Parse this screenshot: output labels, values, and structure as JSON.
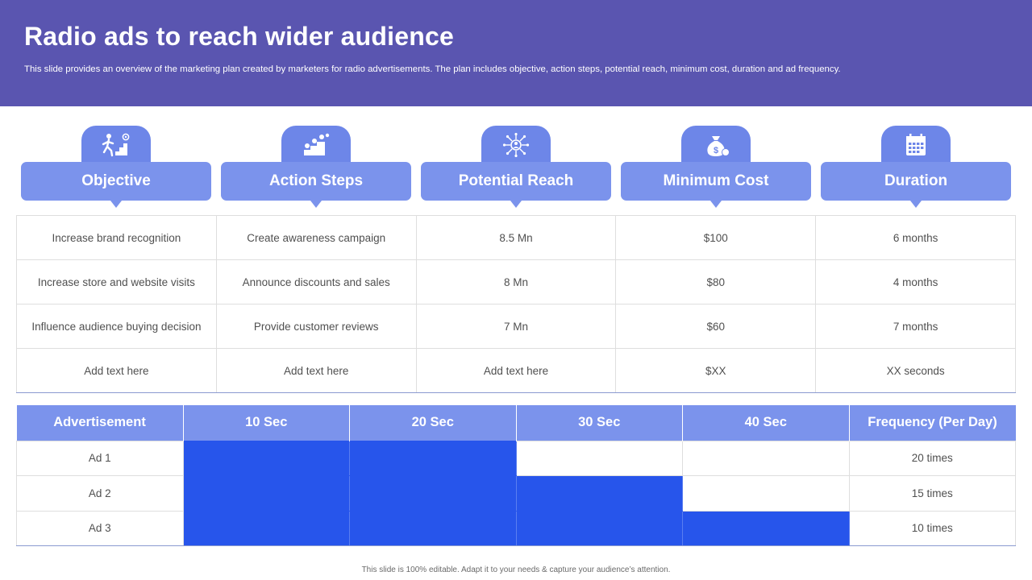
{
  "title": "Radio ads to reach wider audience",
  "subtitle": "This slide provides an overview of the marketing plan created by marketers for radio advertisements. The plan includes objective, action steps, potential reach, minimum cost, duration and ad frequency.",
  "columns": [
    {
      "label": "Objective",
      "icon": "stairs-goal-icon"
    },
    {
      "label": "Action Steps",
      "icon": "growth-steps-icon"
    },
    {
      "label": "Potential Reach",
      "icon": "network-reach-icon"
    },
    {
      "label": "Minimum Cost",
      "icon": "money-bag-icon"
    },
    {
      "label": "Duration",
      "icon": "calendar-icon"
    }
  ],
  "plan_rows": [
    [
      "Increase brand recognition",
      "Create awareness campaign",
      "8.5 Mn",
      "$100",
      "6 months"
    ],
    [
      "Increase store and website visits",
      "Announce discounts and sales",
      "8 Mn",
      "$80",
      "4 months"
    ],
    [
      "Influence audience buying decision",
      "Provide  customer reviews",
      "7 Mn",
      "$60",
      "7 months"
    ],
    [
      "Add text here",
      "Add text here",
      "Add text here",
      "$XX",
      "XX  seconds"
    ]
  ],
  "frequency": {
    "headers": [
      "Advertisement",
      "10 Sec",
      "20 Sec",
      "30 Sec",
      "40 Sec",
      "Frequency (Per Day)"
    ],
    "rows": [
      {
        "ad": "Ad 1",
        "filled": [
          true,
          true,
          false,
          false
        ],
        "freq": "20 times"
      },
      {
        "ad": "Ad 2",
        "filled": [
          true,
          true,
          true,
          false
        ],
        "freq": "15 times"
      },
      {
        "ad": "Ad 3",
        "filled": [
          true,
          true,
          true,
          true
        ],
        "freq": "10 times"
      }
    ],
    "fill_color": "#2755eb"
  },
  "footer": "This slide is 100% editable.  Adapt it to your needs & capture your audience’s attention.",
  "colors": {
    "banner": "#5a55b0",
    "header_pill": "#7b93ec",
    "tab": "#6d86e8"
  }
}
